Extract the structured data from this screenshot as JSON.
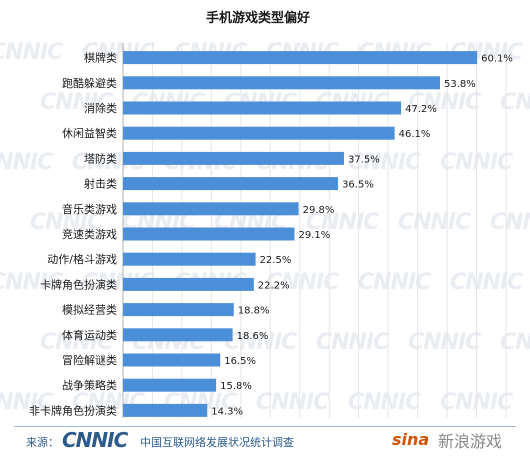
{
  "chart_data": {
    "type": "bar",
    "orientation": "horizontal",
    "title": "手机游戏类型偏好",
    "xlabel": "",
    "ylabel": "",
    "xlim": [
      0,
      65
    ],
    "grid": true,
    "legend": "none",
    "categories": [
      "棋牌类",
      "跑酷躲避类",
      "消除类",
      "休闲益智类",
      "塔防类",
      "射击类",
      "音乐类游戏",
      "竞速类游戏",
      "动作/格斗游戏",
      "卡牌角色扮演类",
      "模拟经营类",
      "体育运动类",
      "冒险解谜类",
      "战争策略类",
      "非卡牌角色扮演类"
    ],
    "values": [
      60.1,
      53.8,
      47.2,
      46.1,
      37.5,
      36.5,
      29.8,
      29.1,
      22.5,
      22.2,
      18.8,
      18.6,
      16.5,
      15.8,
      14.3
    ],
    "value_labels": [
      "60.1%",
      "53.8%",
      "47.2%",
      "46.1%",
      "37.5%",
      "36.5%",
      "29.8%",
      "29.1%",
      "22.5%",
      "22.2%",
      "18.8%",
      "18.6%",
      "16.5%",
      "15.8%",
      "14.3%"
    ],
    "bar_color": "#4a8fd8"
  },
  "footer": {
    "source_label": "来源：",
    "logo_text": "CNNIC",
    "org_name": "中国互联网络发展状况统计调查",
    "sina_logo": "sina",
    "sina_game": "新浪游戏"
  },
  "watermark": {
    "text": "CNNIC"
  }
}
